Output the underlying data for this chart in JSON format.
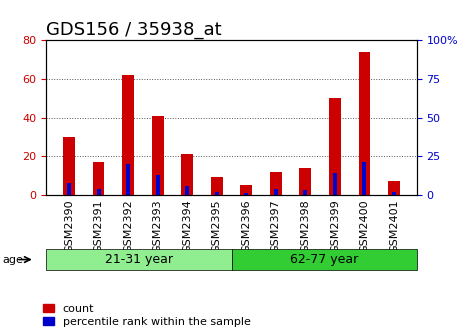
{
  "title": "GDS156 / 35938_at",
  "samples": [
    "GSM2390",
    "GSM2391",
    "GSM2392",
    "GSM2393",
    "GSM2394",
    "GSM2395",
    "GSM2396",
    "GSM2397",
    "GSM2398",
    "GSM2399",
    "GSM2400",
    "GSM2401"
  ],
  "count": [
    30,
    17,
    62,
    41,
    21,
    9,
    5,
    12,
    14,
    50,
    74,
    7
  ],
  "percentile": [
    8,
    4,
    20,
    13,
    6,
    2,
    1,
    4,
    3,
    14,
    21,
    2
  ],
  "groups": [
    {
      "label": "21-31 year",
      "start": 0,
      "end": 6,
      "color": "#90EE90"
    },
    {
      "label": "62-77 year",
      "start": 6,
      "end": 12,
      "color": "#32CD32"
    }
  ],
  "ylim_left": [
    0,
    80
  ],
  "ylim_right": [
    0,
    100
  ],
  "yticks_left": [
    0,
    20,
    40,
    60,
    80
  ],
  "yticks_right": [
    0,
    25,
    50,
    75,
    100
  ],
  "bar_color_red": "#CC0000",
  "bar_color_blue": "#0000CC",
  "bar_width": 0.4,
  "legend_count": "count",
  "legend_percentile": "percentile rank within the sample",
  "age_label": "age",
  "background_color": "#ffffff",
  "plot_bg_color": "#ffffff",
  "grid_color": "#000000",
  "tick_color_left": "#CC0000",
  "tick_color_right": "#0000CC",
  "title_fontsize": 13,
  "tick_fontsize": 8,
  "label_fontsize": 8,
  "group_label_fontsize": 9
}
